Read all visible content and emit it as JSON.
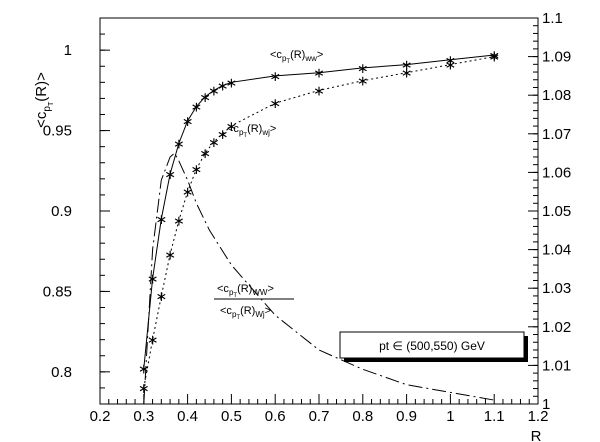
{
  "chart_data": {
    "type": "line",
    "y_axis_label_main": "<c",
    "y_axis_label_sub": "p",
    "y_axis_label_subsub": "T",
    "y_axis_label_end": "(R)>",
    "xlabel": "R",
    "xlim": [
      0.2,
      1.2
    ],
    "ylim_left": [
      0.78,
      1.02
    ],
    "ylim_right": [
      1.0,
      1.1
    ],
    "x_ticks": [
      "0.2",
      "0.3",
      "0.4",
      "0.5",
      "0.6",
      "0.7",
      "0.8",
      "0.9",
      "1",
      "1.1",
      "1.2"
    ],
    "y_ticks_left": [
      "0.8",
      "0.85",
      "0.9",
      "0.95",
      "1"
    ],
    "y_ticks_right": [
      "1",
      "1.01",
      "1.02",
      "1.03",
      "1.04",
      "1.05",
      "1.06",
      "1.07",
      "1.08",
      "1.09",
      "1.1"
    ],
    "legend_text": "pt  ∈  (500,550) GeV",
    "series": [
      {
        "label_main": "<c",
        "label_sub": "p",
        "label_subsub": "T",
        "label_end": "(R)",
        "label_tail": "ww",
        "label_close": ">",
        "style": "solid",
        "axis": "left",
        "x": [
          0.3,
          0.32,
          0.34,
          0.36,
          0.38,
          0.4,
          0.42,
          0.44,
          0.46,
          0.48,
          0.5,
          0.6,
          0.7,
          0.8,
          0.9,
          1.0,
          1.1
        ],
        "y": [
          0.802,
          0.858,
          0.895,
          0.923,
          0.942,
          0.956,
          0.965,
          0.971,
          0.975,
          0.978,
          0.98,
          0.984,
          0.986,
          0.989,
          0.991,
          0.994,
          0.997
        ]
      },
      {
        "label_main": "<c",
        "label_sub": "p",
        "label_subsub": "T",
        "label_end": "(R)",
        "label_tail": "wj",
        "label_close": ">",
        "style": "dotted",
        "axis": "left",
        "x": [
          0.3,
          0.32,
          0.34,
          0.36,
          0.38,
          0.4,
          0.42,
          0.44,
          0.46,
          0.48,
          0.5,
          0.6,
          0.7,
          0.8,
          0.9,
          1.0,
          1.1
        ],
        "y": [
          0.79,
          0.82,
          0.847,
          0.873,
          0.894,
          0.912,
          0.926,
          0.936,
          0.943,
          0.948,
          0.953,
          0.967,
          0.975,
          0.981,
          0.986,
          0.991,
          0.996
        ]
      },
      {
        "ratio_num_main": "<c",
        "ratio_num_sub": "p",
        "ratio_num_subsub": "T",
        "ratio_num_end": "(R)",
        "ratio_num_tail": "WW",
        "ratio_num_close": ">",
        "ratio_den_main": "<c",
        "ratio_den_sub": "p",
        "ratio_den_subsub": "T",
        "ratio_den_end": "(R)",
        "ratio_den_tail": "Wj",
        "ratio_den_close": ">",
        "style": "dash-dot",
        "axis": "right",
        "x": [
          0.3,
          0.32,
          0.34,
          0.36,
          0.37,
          0.38,
          0.4,
          0.42,
          0.45,
          0.5,
          0.6,
          0.7,
          0.8,
          0.9,
          1.0,
          1.1
        ],
        "y": [
          1.0,
          1.04,
          1.058,
          1.064,
          1.065,
          1.063,
          1.058,
          1.052,
          1.045,
          1.036,
          1.023,
          1.014,
          1.009,
          1.005,
          1.003,
          1.001
        ]
      }
    ]
  }
}
